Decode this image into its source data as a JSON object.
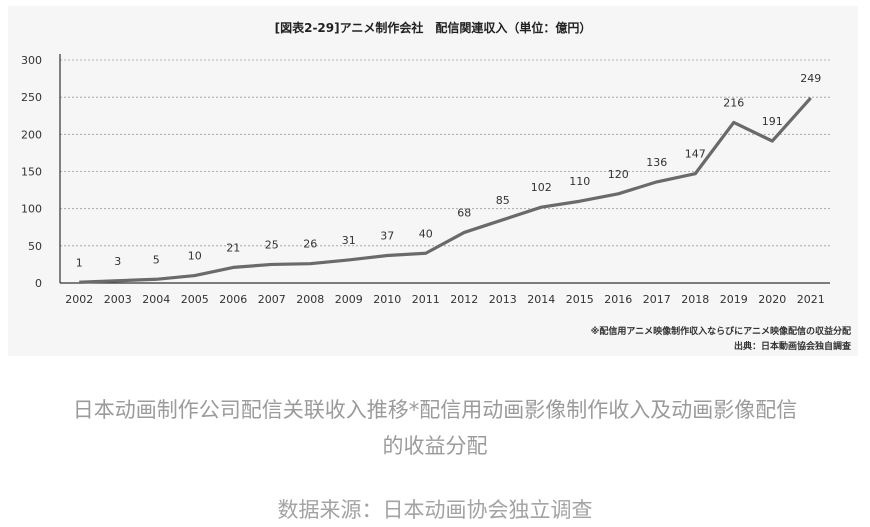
{
  "chart_data": {
    "type": "line",
    "title": "[図表2-29]アニメ制作会社　配信関連収入（単位：億円）",
    "categories": [
      "2002",
      "2003",
      "2004",
      "2005",
      "2006",
      "2007",
      "2008",
      "2009",
      "2010",
      "2011",
      "2012",
      "2013",
      "2014",
      "2015",
      "2016",
      "2017",
      "2018",
      "2019",
      "2020",
      "2021"
    ],
    "series": [
      {
        "values": [
          1,
          3,
          5,
          10,
          21,
          25,
          26,
          31,
          37,
          40,
          68,
          85,
          102,
          110,
          120,
          136,
          147,
          216,
          191,
          249
        ]
      }
    ],
    "yticks": [
      0,
      50,
      100,
      150,
      200,
      250,
      300
    ],
    "ylim": [
      0,
      300
    ],
    "grid": true,
    "notes": [
      "※配信用アニメ映像制作収入ならびにアニメ映像配信の収益分配",
      "出典：日本動画協会独自調査"
    ]
  },
  "caption": {
    "line1": "日本动画制作公司配信关联收入推移*配信用动画影像制作收入及动画影像配信",
    "line2": "的收益分配"
  },
  "source": "数据来源：日本动画协会独立调查"
}
